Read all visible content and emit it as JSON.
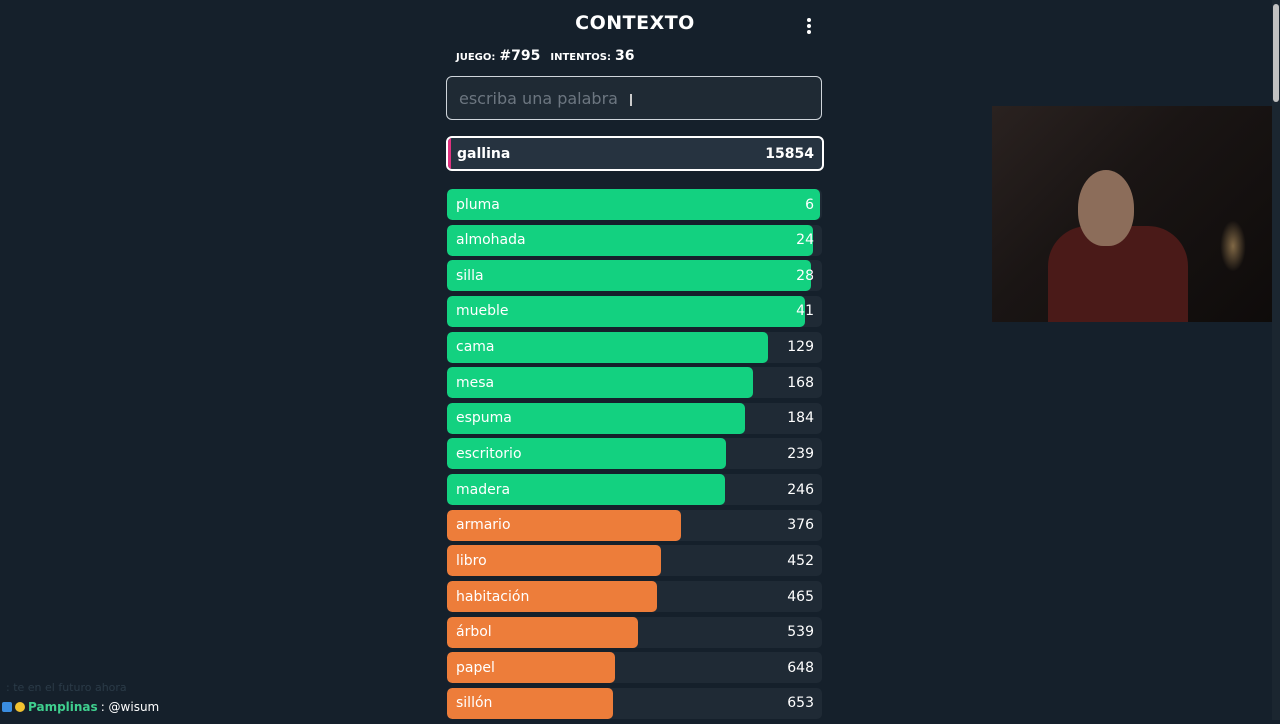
{
  "header": {
    "title": "CONTEXTO"
  },
  "stats": {
    "game_label": "JUEGO:",
    "game_value": "#795",
    "attempts_label": "INTENTOS:",
    "attempts_value": "36"
  },
  "input": {
    "placeholder": "escriba una palabra",
    "value": ""
  },
  "current_guess": {
    "word": "gallina",
    "rank": "15854",
    "accent": "#e0327f"
  },
  "colors": {
    "green": "#13d180",
    "orange": "#ed7d3a",
    "track": "#1f2a35"
  },
  "guesses": [
    {
      "word": "pluma",
      "rank": "6",
      "color": "green",
      "fill": 0.995
    },
    {
      "word": "almohada",
      "rank": "24",
      "color": "green",
      "fill": 0.975
    },
    {
      "word": "silla",
      "rank": "28",
      "color": "green",
      "fill": 0.97
    },
    {
      "word": "mueble",
      "rank": "41",
      "color": "green",
      "fill": 0.955
    },
    {
      "word": "cama",
      "rank": "129",
      "color": "green",
      "fill": 0.855
    },
    {
      "word": "mesa",
      "rank": "168",
      "color": "green",
      "fill": 0.815
    },
    {
      "word": "espuma",
      "rank": "184",
      "color": "green",
      "fill": 0.795
    },
    {
      "word": "escritorio",
      "rank": "239",
      "color": "green",
      "fill": 0.745
    },
    {
      "word": "madera",
      "rank": "246",
      "color": "green",
      "fill": 0.74
    },
    {
      "word": "armario",
      "rank": "376",
      "color": "orange",
      "fill": 0.625
    },
    {
      "word": "libro",
      "rank": "452",
      "color": "orange",
      "fill": 0.57
    },
    {
      "word": "habitación",
      "rank": "465",
      "color": "orange",
      "fill": 0.56
    },
    {
      "word": "árbol",
      "rank": "539",
      "color": "orange",
      "fill": 0.51
    },
    {
      "word": "papel",
      "rank": "648",
      "color": "orange",
      "fill": 0.447
    },
    {
      "word": "sillón",
      "rank": "653",
      "color": "orange",
      "fill": 0.443
    }
  ],
  "chat": {
    "ghost_text": ": te en el futuro ahora",
    "user": "Pamplinas",
    "message": ": @wisum"
  }
}
